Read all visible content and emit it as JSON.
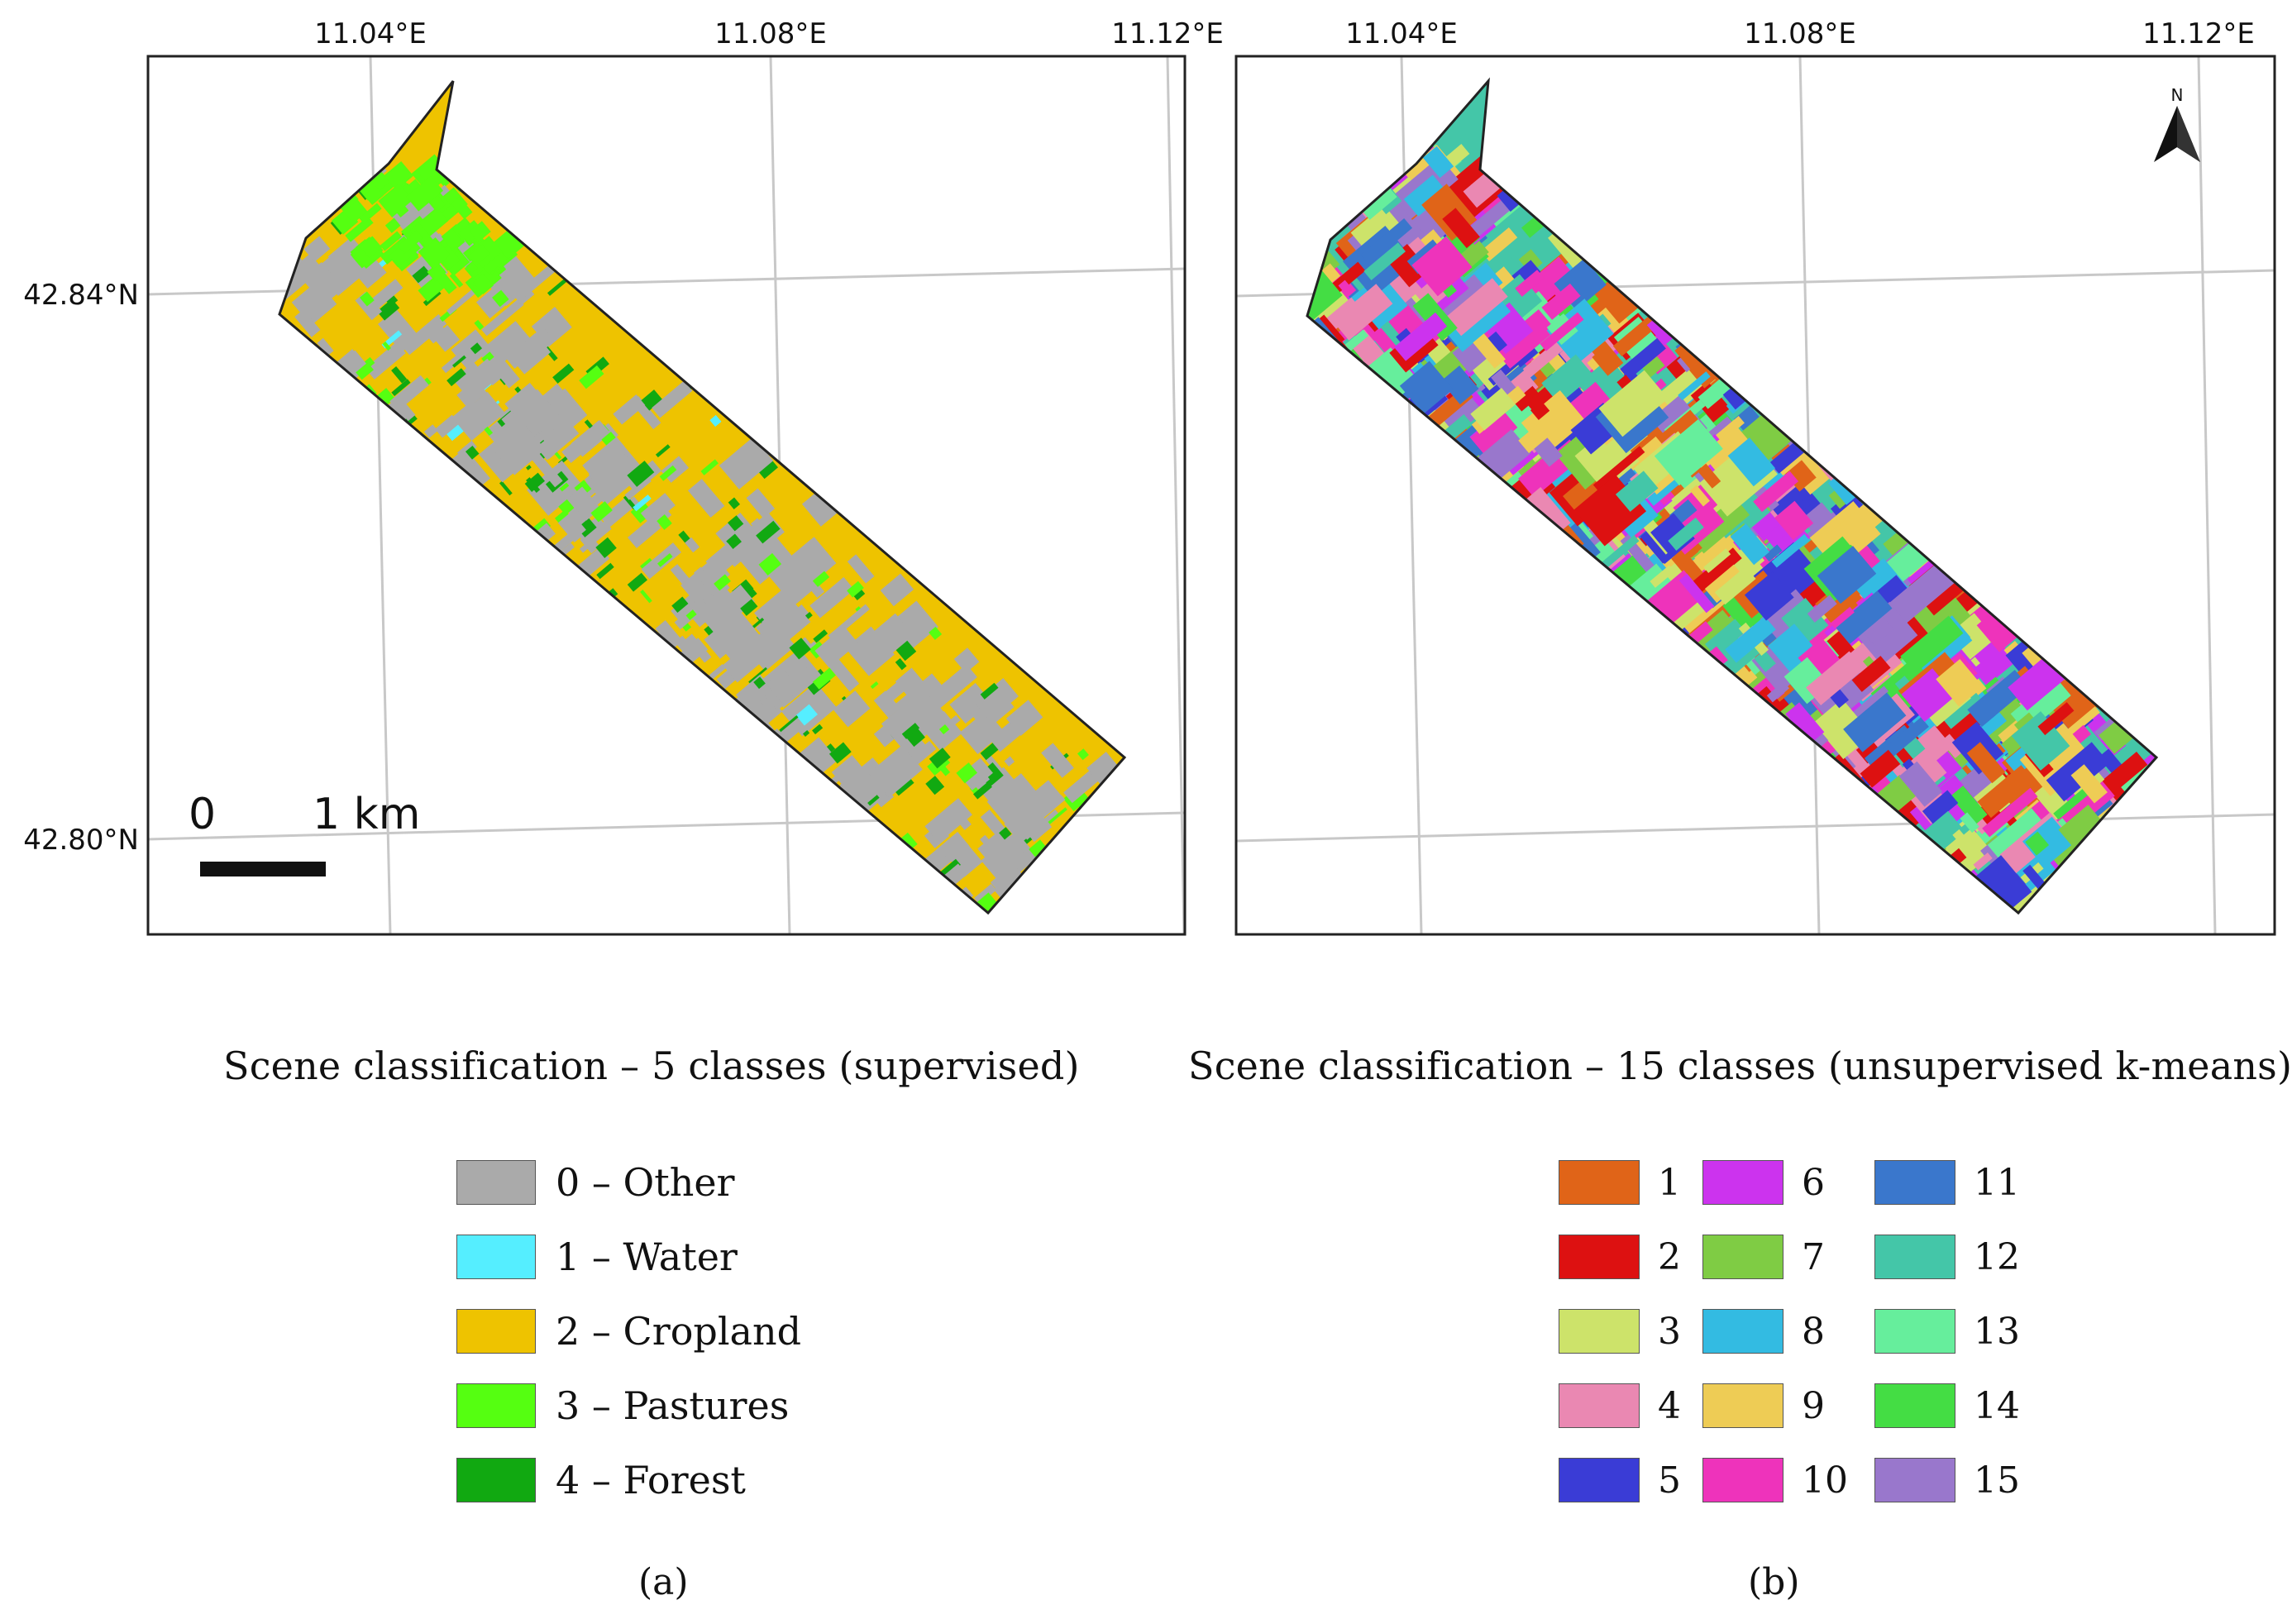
{
  "map_a": {
    "lon_labels": [
      "11.04°E",
      "11.08°E",
      "11.12°E"
    ],
    "lat_labels": [
      "42.84°N",
      "42.80°N"
    ],
    "scalebar": {
      "start": "0",
      "end": "1 km"
    },
    "title": "Scene classification – 5 classes (supervised)",
    "legend": [
      {
        "label": "0 – Other",
        "color": "#aaaaaa"
      },
      {
        "label": "1 – Water",
        "color": "#55eeff"
      },
      {
        "label": "2 – Cropland",
        "color": "#eec300"
      },
      {
        "label": "3 – Pastures",
        "color": "#55ff11"
      },
      {
        "label": "4 – Forest",
        "color": "#11a911"
      }
    ],
    "panel_letter": "(a)"
  },
  "map_b": {
    "lon_labels": [
      "11.04°E",
      "11.08°E",
      "11.12°E"
    ],
    "north_label": "N",
    "title": "Scene classification – 15 classes (unsupervised k-means)",
    "legend": [
      {
        "label": "1",
        "color": "#e06418"
      },
      {
        "label": "2",
        "color": "#dd1111"
      },
      {
        "label": "3",
        "color": "#cde36a"
      },
      {
        "label": "4",
        "color": "#ea88b2"
      },
      {
        "label": "5",
        "color": "#3a3cd6"
      },
      {
        "label": "6",
        "color": "#cc33ee"
      },
      {
        "label": "7",
        "color": "#7fcc44"
      },
      {
        "label": "8",
        "color": "#33bbe2"
      },
      {
        "label": "9",
        "color": "#eecc55"
      },
      {
        "label": "10",
        "color": "#ee33bb"
      },
      {
        "label": "11",
        "color": "#3a77cc"
      },
      {
        "label": "12",
        "color": "#44c6a8"
      },
      {
        "label": "13",
        "color": "#66ee9c"
      },
      {
        "label": "14",
        "color": "#44dd44"
      },
      {
        "label": "15",
        "color": "#9977cc"
      }
    ],
    "panel_letter": "(b)"
  }
}
